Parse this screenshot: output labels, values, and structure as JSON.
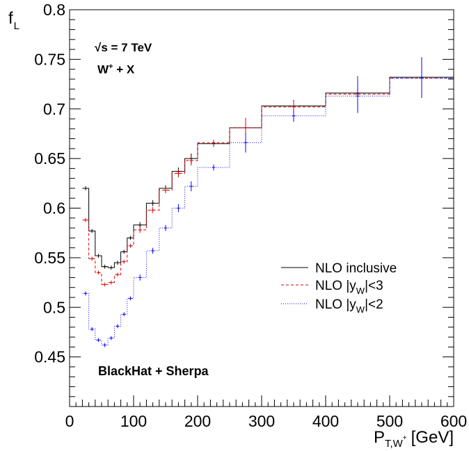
{
  "chart_data": {
    "type": "line",
    "subtype": "step-histogram-with-error-bars",
    "xlabel": "P",
    "xlabel_sub": "T,W",
    "xlabel_sup": "+",
    "xlabel_unit": "[GeV]",
    "ylabel": "f",
    "ylabel_sub": "L",
    "xlim": [
      0,
      600
    ],
    "ylim": [
      0.4,
      0.8
    ],
    "x_ticks": [
      0,
      100,
      200,
      300,
      400,
      500,
      600
    ],
    "y_ticks": [
      0.45,
      0.5,
      0.55,
      0.6,
      0.65,
      0.7,
      0.75,
      0.8
    ],
    "y_tick_labels": [
      "0.45",
      "0.5",
      "0.55",
      "0.6",
      "0.65",
      "0.7",
      "0.75",
      "0.8"
    ],
    "grid": false,
    "legend_position": "right-middle",
    "annotations": {
      "energy": "√s = 7 TeV",
      "process": "W + X",
      "process_sup": "+",
      "generator": "BlackHat + Sherpa"
    },
    "bin_edges": [
      20,
      30,
      40,
      50,
      60,
      70,
      80,
      90,
      100,
      120,
      140,
      160,
      180,
      200,
      250,
      300,
      400,
      500,
      600
    ],
    "series": [
      {
        "name": "NLO inclusive",
        "color": "#000000",
        "style": "solid",
        "values": [
          0.62,
          0.577,
          0.552,
          0.541,
          0.54,
          0.545,
          0.556,
          0.57,
          0.583,
          0.605,
          0.62,
          0.637,
          0.65,
          0.665,
          0.681,
          0.703,
          0.716,
          0.732
        ],
        "errors": [
          0.002,
          0.002,
          0.002,
          0.002,
          0.002,
          0.002,
          0.002,
          0.002,
          0.003,
          0.003,
          0.003,
          0.004,
          0.005,
          0.003,
          0.01,
          0.006,
          0.017,
          0.02
        ]
      },
      {
        "name": "NLO |y|<3",
        "label_prefix": "NLO |y",
        "label_sub": "W",
        "label_suffix": "|<3",
        "color": "#dd0000",
        "style": "dashed",
        "values": [
          0.588,
          0.549,
          0.535,
          0.523,
          0.525,
          0.533,
          0.546,
          0.562,
          0.578,
          0.598,
          0.618,
          0.635,
          0.648,
          0.666,
          0.681,
          0.702,
          0.715,
          0.731
        ],
        "errors": [
          0.002,
          0.002,
          0.002,
          0.002,
          0.002,
          0.002,
          0.002,
          0.002,
          0.003,
          0.003,
          0.003,
          0.004,
          0.005,
          0.003,
          0.01,
          0.006,
          0.017,
          0.02
        ]
      },
      {
        "name": "NLO |y|<2",
        "label_prefix": "NLO |y",
        "label_sub": "W",
        "label_suffix": "|<2",
        "color": "#0000ff",
        "style": "dotted",
        "values": [
          0.514,
          0.478,
          0.467,
          0.462,
          0.469,
          0.481,
          0.493,
          0.509,
          0.53,
          0.557,
          0.58,
          0.6,
          0.622,
          0.641,
          0.666,
          0.693,
          0.713,
          0.731
        ],
        "errors": [
          0.002,
          0.002,
          0.002,
          0.002,
          0.002,
          0.002,
          0.002,
          0.002,
          0.003,
          0.003,
          0.003,
          0.004,
          0.005,
          0.003,
          0.01,
          0.006,
          0.017,
          0.02
        ]
      }
    ]
  }
}
